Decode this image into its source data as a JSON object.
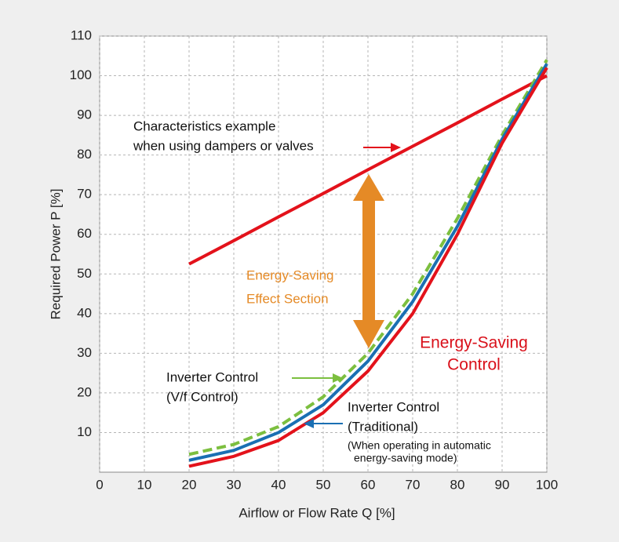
{
  "chart_data": {
    "type": "line",
    "x_label": "Airflow or Flow Rate Q  [%]",
    "y_label": "Required Power P [%]",
    "x": [
      20,
      30,
      40,
      50,
      60,
      70,
      80,
      90,
      100
    ],
    "xlim": [
      0,
      100
    ],
    "xticks": [
      0,
      10,
      20,
      30,
      40,
      50,
      60,
      70,
      80,
      90,
      100
    ],
    "ylim": [
      0,
      110
    ],
    "yticks": [
      10,
      20,
      30,
      40,
      50,
      60,
      70,
      80,
      90,
      100,
      110
    ],
    "grid": true,
    "series": [
      {
        "color": "#e3121b",
        "style": "solid",
        "values": [
          52.5,
          58.4,
          64.4,
          70.3,
          76.3,
          82.2,
          88.1,
          94.1,
          100
        ]
      },
      {
        "color": "#7cbf3f",
        "style": "dashed",
        "values": [
          4.5,
          7,
          11.5,
          19,
          30,
          45,
          64,
          85,
          104
        ]
      },
      {
        "color": "#1a6fb3",
        "style": "solid",
        "values": [
          3,
          5.5,
          10,
          17,
          28,
          43,
          62,
          84,
          103
        ]
      },
      {
        "color": "#e3121b",
        "style": "solid",
        "values": [
          1.5,
          4,
          8,
          15,
          25.5,
          40,
          60,
          83,
          102
        ]
      }
    ],
    "annotations": {
      "dampers": [
        "Characteristics example",
        "when using dampers or valves"
      ],
      "effect": [
        "Energy-Saving",
        "Effect Section"
      ],
      "control": [
        "Energy-Saving",
        "Control"
      ],
      "vf": [
        "Inverter Control",
        "(V/f Control)"
      ],
      "traditional": [
        "Inverter Control",
        "(Traditional)"
      ],
      "mode": [
        "(When operating in automatic",
        "energy-saving mode)"
      ]
    }
  }
}
